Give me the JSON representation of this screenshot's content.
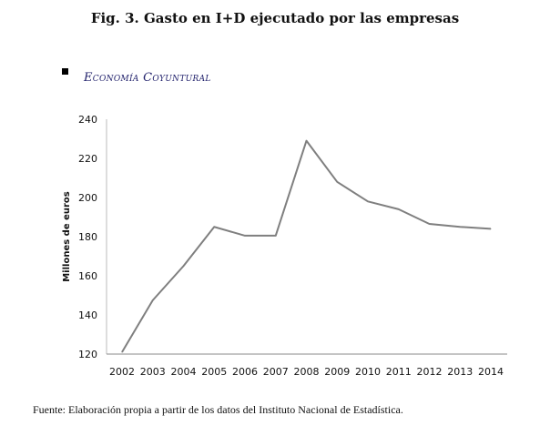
{
  "chart_data": {
    "type": "line",
    "title": "Fig. 3. Gasto en I+D ejecutado por las empresas",
    "legend": [
      "Economía Coyuntural"
    ],
    "legend_placement": "top-left",
    "xlabel": "",
    "ylabel": "Millones de euros",
    "ylim": [
      120,
      240
    ],
    "yticks": [
      120,
      140,
      160,
      180,
      200,
      220,
      240
    ],
    "categories": [
      "2002",
      "2003",
      "2004",
      "2005",
      "2006",
      "2007",
      "2008",
      "2009",
      "2010",
      "2011",
      "2012",
      "2013",
      "2014"
    ],
    "series": [
      {
        "name": "Economía Coyuntural",
        "color": "#7f7f7f",
        "values": [
          121,
          147.5,
          165,
          185,
          180.5,
          180.5,
          229,
          208,
          198,
          194,
          186.5,
          185,
          184
        ]
      }
    ],
    "grid": false
  },
  "source": "Fuente: Elaboración propia a partir de los datos del Instituto Nacional de Estadística."
}
